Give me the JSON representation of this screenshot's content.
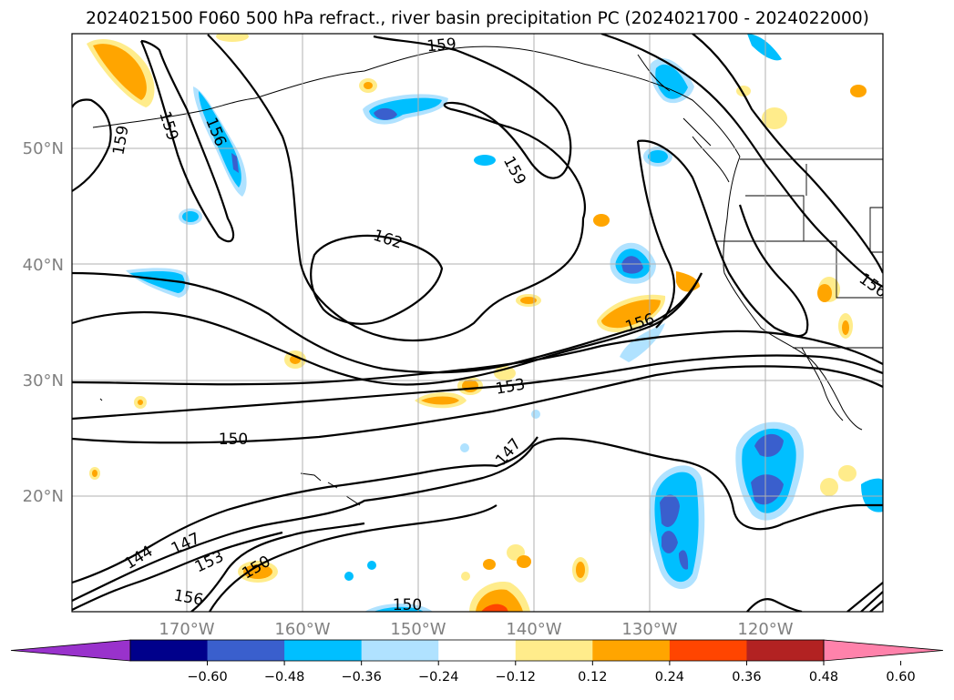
{
  "title": "2024021500 F060 500 hPa refract., river basin precipitation PC (2024021700 - 2024022000)",
  "lat_labels": [
    "50°N",
    "40°N",
    "30°N",
    "20°N"
  ],
  "lon_labels": [
    "170°W",
    "160°W",
    "150°W",
    "140°W",
    "130°W",
    "120°W"
  ],
  "colorbar": {
    "tick_labels": [
      "−0.60",
      "−0.48",
      "−0.36",
      "−0.24",
      "−0.12",
      "0.12",
      "0.24",
      "0.36",
      "0.48",
      "0.60"
    ],
    "colors": [
      "#9932cc",
      "#00008b",
      "#3a5fcd",
      "#00bfff",
      "#b0e2ff",
      "#ffffff",
      "#ffec8b",
      "#ffa500",
      "#ff4500",
      "#b22222",
      "#ff82ab"
    ]
  },
  "contour_labels": [
    "159",
    "159",
    "156",
    "159",
    "159",
    "162",
    "156",
    "156",
    "153",
    "150",
    "147",
    "144",
    "147",
    "153",
    "150",
    "156",
    "150"
  ],
  "colors": {
    "contour": "#000000",
    "grid": "#b0b0b0",
    "axis_label": "#808080"
  }
}
